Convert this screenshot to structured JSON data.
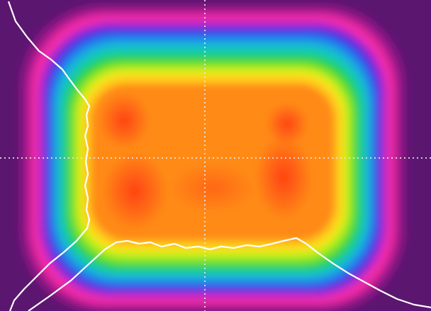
{
  "image": {
    "kind": "beam-profile-false-color-map",
    "colormap": [
      "#5b1670",
      "#a0158c",
      "#ff2ea8",
      "#3a1bd6",
      "#1f8ff0",
      "#16c9c2",
      "#1fd23a",
      "#c9f21a",
      "#ffe81a",
      "#ff9a1a",
      "#ff4a14"
    ],
    "background_color": "#5b1670",
    "crosshair_color": "#e8e8e8",
    "profile_line_color": "#ffffff",
    "crosshair_style": "dotted",
    "profiles": [
      "horizontal-cross-section",
      "vertical-cross-section"
    ]
  }
}
